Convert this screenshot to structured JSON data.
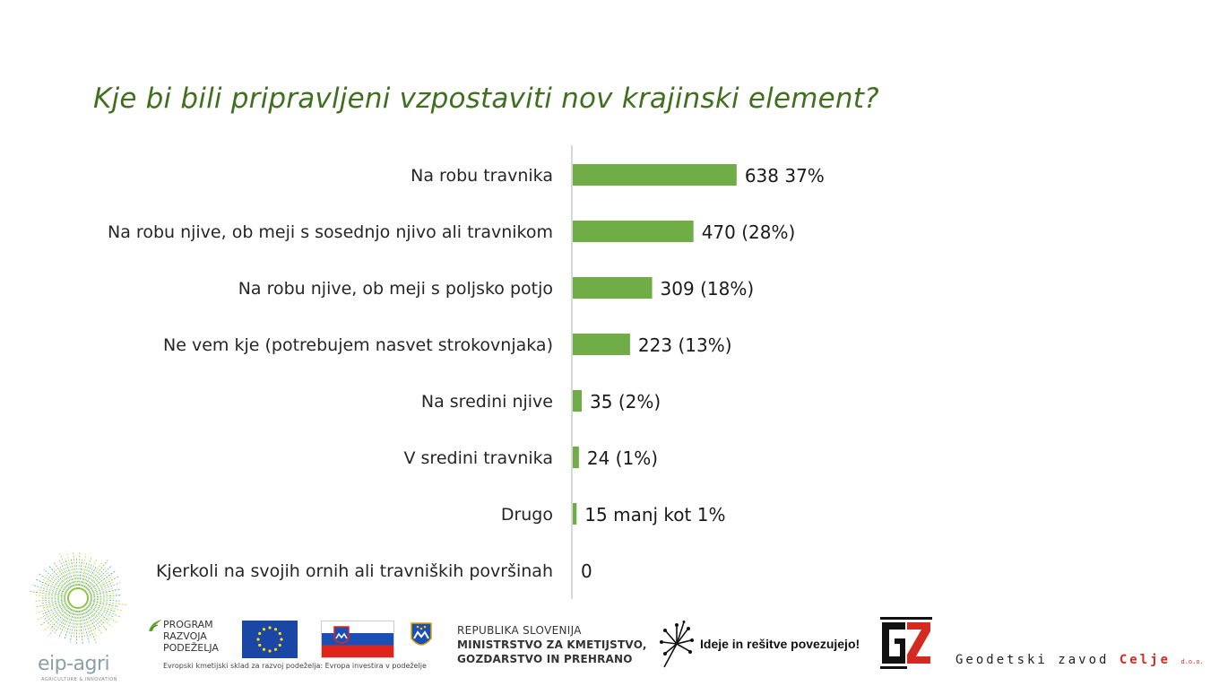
{
  "title": "Kje bi bili pripravljeni vzpostaviti nov krajinski element?",
  "chart_data": {
    "type": "bar",
    "orientation": "horizontal",
    "categories": [
      "Na robu travnika",
      "Na robu njive, ob meji s sosednjo njivo ali travnikom",
      "Na robu njive, ob meji s poljsko potjo",
      "Ne vem kje (potrebujem nasvet strokovnjaka)",
      "Na sredini njive",
      "V sredini travnika",
      "Drugo",
      "Kjerkoli na svojih ornih ali travniških površinah"
    ],
    "values": [
      638,
      470,
      309,
      223,
      35,
      24,
      15,
      0
    ],
    "data_labels": [
      "638 37%",
      "470 (28%)",
      "309 (18%)",
      "223 (13%)",
      "35 (2%)",
      "24 (1%)",
      "15 manj kot 1%",
      "0"
    ],
    "xlim": [
      0,
      2310
    ],
    "grid": false,
    "legend": "none",
    "bar_color": "#70ad47",
    "axis_color": "#bfbfbf"
  },
  "footer": {
    "eip": {
      "name": "eip-agri",
      "tagline": "AGRICULTURE & INNOVATION"
    },
    "program": {
      "name_lines": [
        "PROGRAM",
        "RAZVOJA",
        "PODEŽELJA"
      ],
      "footnote": "Evropski kmetijski sklad za razvoj podeželja: Evropa investira v podeželje"
    },
    "ministry": {
      "line1": "REPUBLIKA SLOVENIJA",
      "line2": "MINISTRSTVO ZA KMETIJSTVO,",
      "line3": "GOZDARSTVO IN PREHRANO"
    },
    "ideje": "Ideje in rešitve povezujejo!",
    "geodetski": {
      "text": "Geodetski zavod",
      "city": "Celje",
      "suffix": "d.o.o."
    },
    "colors": {
      "eu_blue": "#1a47a6",
      "gz_red": "#d42a22",
      "green": "#70ad47"
    }
  }
}
